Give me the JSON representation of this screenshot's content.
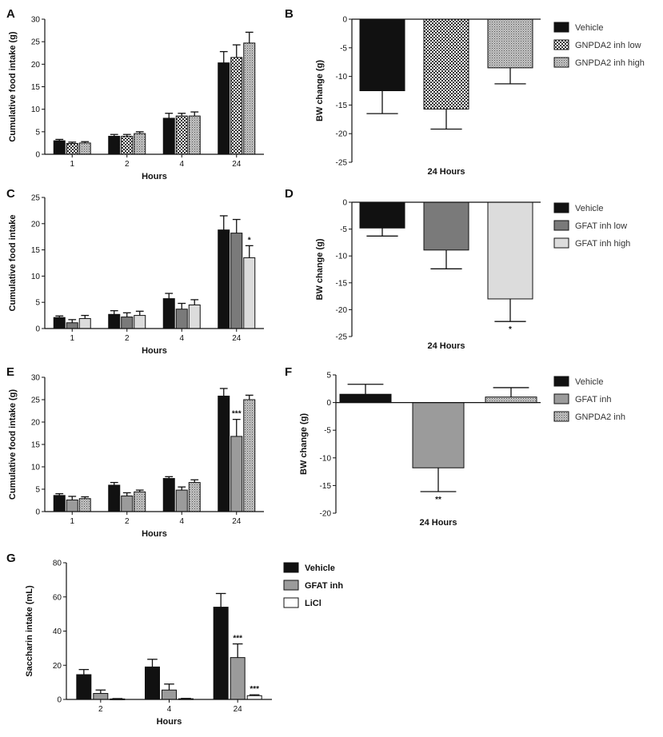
{
  "colors": {
    "black": "#111111",
    "dark_gray": "#7a7a7a",
    "mid_gray": "#9b9b9b",
    "light_gray": "#dcdcdc",
    "white": "#ffffff"
  },
  "chart_data": [
    {
      "panel": "A",
      "type": "bar",
      "xlabel": "Hours",
      "ylabel": "Cumulative food intake (g)",
      "ylim": [
        0,
        30
      ],
      "yticks": [
        0,
        5,
        10,
        15,
        20,
        25,
        30
      ],
      "categories": [
        "1",
        "2",
        "4",
        "24"
      ],
      "series": [
        {
          "name": "Vehicle",
          "pattern": "black",
          "values": [
            3.0,
            4.0,
            8.0,
            20.3
          ],
          "errors": [
            0.3,
            0.4,
            1.1,
            2.5
          ]
        },
        {
          "name": "GNPDA2 inh low",
          "pattern": "checker",
          "values": [
            2.4,
            4.0,
            8.5,
            21.5
          ],
          "errors": [
            0.3,
            0.4,
            0.6,
            2.8
          ]
        },
        {
          "name": "GNPDA2 inh high",
          "pattern": "dots",
          "values": [
            2.5,
            4.6,
            8.5,
            24.7
          ],
          "errors": [
            0.3,
            0.4,
            0.9,
            2.4
          ]
        }
      ]
    },
    {
      "panel": "B",
      "type": "bar",
      "xlabel": "24 Hours",
      "ylabel": "BW change (g)",
      "ylim": [
        -25,
        0
      ],
      "yticks": [
        0,
        -5,
        -10,
        -15,
        -20,
        -25
      ],
      "categories": [
        ""
      ],
      "series": [
        {
          "name": "Vehicle",
          "pattern": "black",
          "values": [
            -12.5
          ],
          "errors": [
            4.0
          ]
        },
        {
          "name": "GNPDA2 inh low",
          "pattern": "checker",
          "values": [
            -15.7
          ],
          "errors": [
            3.5
          ]
        },
        {
          "name": "GNPDA2 inh high",
          "pattern": "dots",
          "values": [
            -8.5
          ],
          "errors": [
            2.8
          ]
        }
      ],
      "legend": [
        "Vehicle",
        "GNPDA2 inh low",
        "GNPDA2 inh high"
      ]
    },
    {
      "panel": "C",
      "type": "bar",
      "xlabel": "Hours",
      "ylabel": "Cumulative food intake",
      "ylim": [
        0,
        25
      ],
      "yticks": [
        0,
        5,
        10,
        15,
        20,
        25
      ],
      "categories": [
        "1",
        "2",
        "4",
        "24"
      ],
      "series": [
        {
          "name": "Vehicle",
          "pattern": "black",
          "values": [
            2.1,
            2.7,
            5.7,
            18.8
          ],
          "errors": [
            0.3,
            0.7,
            1.0,
            2.7
          ]
        },
        {
          "name": "GFAT inh low",
          "pattern": "dark",
          "values": [
            1.1,
            2.2,
            3.7,
            18.2
          ],
          "errors": [
            0.6,
            0.8,
            1.1,
            2.6
          ]
        },
        {
          "name": "GFAT inh high",
          "pattern": "light",
          "values": [
            1.9,
            2.5,
            4.5,
            13.5
          ],
          "errors": [
            0.6,
            0.8,
            1.0,
            2.3
          ]
        }
      ],
      "annotations": [
        {
          "category": "24",
          "series": 2,
          "text": "*"
        }
      ]
    },
    {
      "panel": "D",
      "type": "bar",
      "xlabel": "24 Hours",
      "ylabel": "BW change (g)",
      "ylim": [
        -25,
        0
      ],
      "yticks": [
        0,
        -5,
        -10,
        -15,
        -20,
        -25
      ],
      "categories": [
        ""
      ],
      "series": [
        {
          "name": "Vehicle",
          "pattern": "black",
          "values": [
            -4.8
          ],
          "errors": [
            1.5
          ]
        },
        {
          "name": "GFAT inh low",
          "pattern": "dark",
          "values": [
            -8.9
          ],
          "errors": [
            3.5
          ]
        },
        {
          "name": "GFAT inh high",
          "pattern": "light",
          "values": [
            -18.0
          ],
          "errors": [
            4.2
          ]
        }
      ],
      "legend": [
        "Vehicle",
        "GFAT inh low",
        "GFAT inh high"
      ],
      "annotations": [
        {
          "category": "",
          "series": 2,
          "text": "*"
        }
      ]
    },
    {
      "panel": "E",
      "type": "bar",
      "xlabel": "Hours",
      "ylabel": "Cumulative food intake (g)",
      "ylim": [
        0,
        30
      ],
      "yticks": [
        0,
        5,
        10,
        15,
        20,
        25,
        30
      ],
      "categories": [
        "1",
        "2",
        "4",
        "24"
      ],
      "series": [
        {
          "name": "Vehicle",
          "pattern": "black",
          "values": [
            3.6,
            5.9,
            7.4,
            25.8
          ],
          "errors": [
            0.4,
            0.6,
            0.4,
            1.7
          ]
        },
        {
          "name": "GFAT inh",
          "pattern": "mid",
          "values": [
            2.6,
            3.5,
            4.8,
            16.8
          ],
          "errors": [
            0.8,
            0.7,
            0.7,
            3.8
          ]
        },
        {
          "name": "GNPDA2 inh",
          "pattern": "dots",
          "values": [
            2.9,
            4.4,
            6.5,
            25.0
          ],
          "errors": [
            0.4,
            0.4,
            0.6,
            1.0
          ]
        }
      ],
      "annotations": [
        {
          "category": "24",
          "series": 1,
          "text": "***"
        }
      ]
    },
    {
      "panel": "F",
      "type": "bar",
      "xlabel": "24 Hours",
      "ylabel": "BW change (g)",
      "ylim": [
        -20,
        5
      ],
      "yticks": [
        5,
        0,
        -5,
        -10,
        -15,
        -20
      ],
      "categories": [
        ""
      ],
      "series": [
        {
          "name": "Vehicle",
          "pattern": "black",
          "values": [
            1.5
          ],
          "errors": [
            1.8
          ]
        },
        {
          "name": "GFAT inh",
          "pattern": "mid",
          "values": [
            -11.8
          ],
          "errors": [
            4.3
          ]
        },
        {
          "name": "GNPDA2 inh",
          "pattern": "dots",
          "values": [
            1.0
          ],
          "errors": [
            1.7
          ]
        }
      ],
      "legend": [
        "Vehicle",
        "GFAT inh",
        "GNPDA2 inh"
      ],
      "annotations": [
        {
          "category": "",
          "series": 1,
          "text": "**"
        }
      ]
    },
    {
      "panel": "G",
      "type": "bar",
      "xlabel": "Hours",
      "ylabel": "Saccharin intake (mL)",
      "ylim": [
        0,
        80
      ],
      "yticks": [
        0,
        20,
        40,
        60,
        80
      ],
      "categories": [
        "2",
        "4",
        "24"
      ],
      "series": [
        {
          "name": "Vehicle",
          "pattern": "black",
          "values": [
            14.5,
            19.0,
            54.0
          ],
          "errors": [
            3.0,
            4.5,
            8.0
          ]
        },
        {
          "name": "GFAT inh",
          "pattern": "mid",
          "values": [
            3.5,
            5.5,
            24.5
          ],
          "errors": [
            2.0,
            3.5,
            8.0
          ]
        },
        {
          "name": "LiCl",
          "pattern": "white",
          "values": [
            0.3,
            0.4,
            2.2
          ],
          "errors": [
            0.2,
            0.2,
            0.5
          ]
        }
      ],
      "legend": [
        "Vehicle",
        "GFAT inh",
        "LiCl"
      ],
      "annotations": [
        {
          "category": "24",
          "series": 1,
          "text": "***"
        },
        {
          "category": "24",
          "series": 2,
          "text": "***"
        }
      ]
    }
  ]
}
